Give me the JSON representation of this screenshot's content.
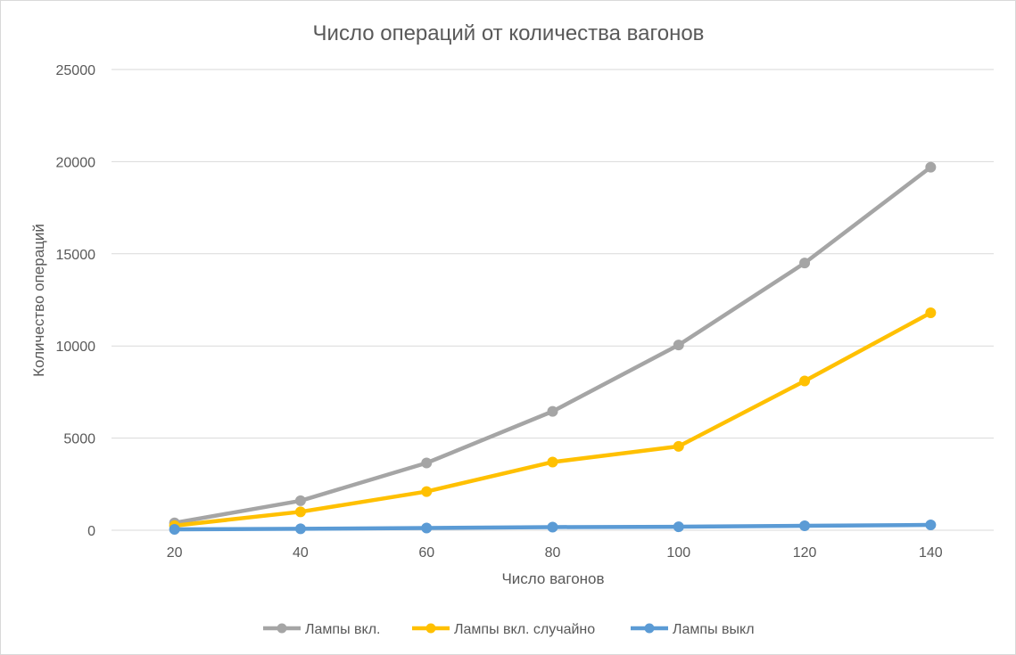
{
  "chart_data": {
    "type": "line",
    "title": "Число операций от количества вагонов",
    "xlabel": "Число вагонов",
    "ylabel": "Количество операций",
    "categories": [
      "20",
      "40",
      "60",
      "80",
      "100",
      "120",
      "140"
    ],
    "ylim": [
      0,
      25000
    ],
    "yticks": [
      "0",
      "5000",
      "10000",
      "15000",
      "20000",
      "25000"
    ],
    "grid": true,
    "legend_position": "bottom",
    "series": [
      {
        "name": "Лампы вкл.",
        "color": "#a5a5a5",
        "values": [
          400,
          1600,
          3650,
          6450,
          10050,
          14500,
          19700
        ]
      },
      {
        "name": "Лампы вкл. случайно",
        "color": "#ffc000",
        "values": [
          250,
          1000,
          2100,
          3700,
          4550,
          8100,
          11800
        ]
      },
      {
        "name": "Лампы выкл",
        "color": "#5b9bd5",
        "values": [
          50,
          80,
          120,
          170,
          190,
          240,
          290
        ]
      }
    ]
  }
}
